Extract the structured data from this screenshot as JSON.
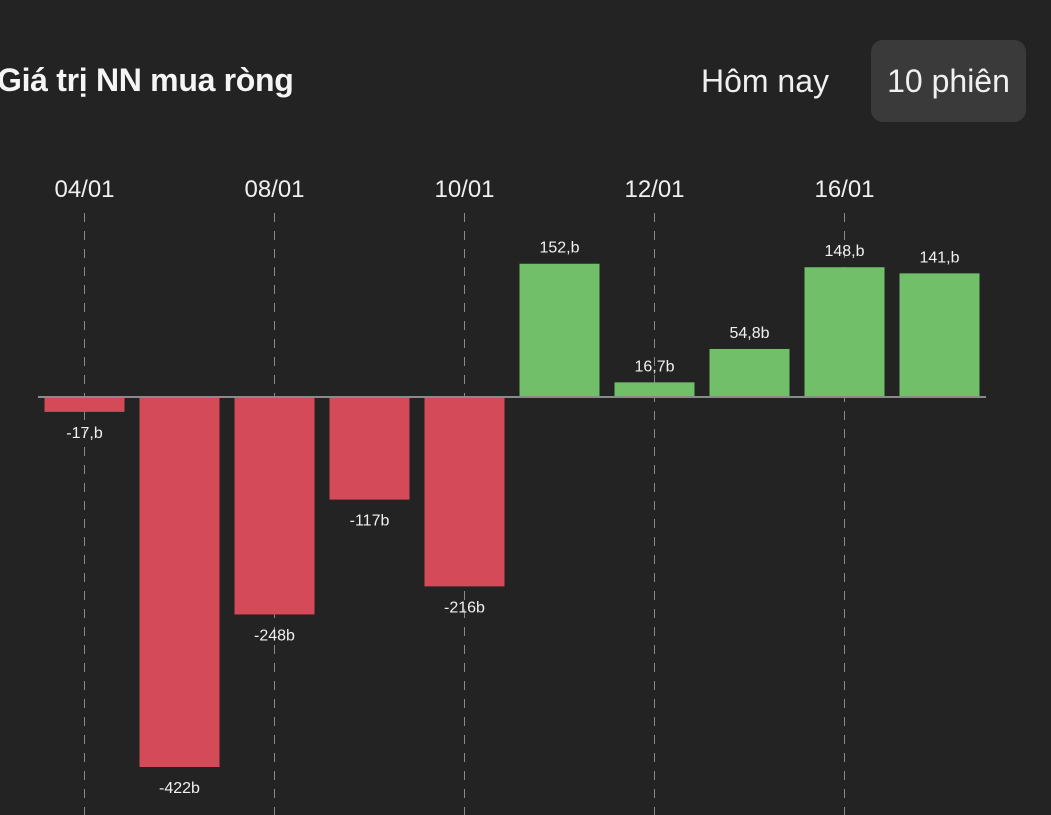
{
  "header": {
    "title": "Giá trị NN mua ròng",
    "tabs": [
      {
        "label": "Hôm nay",
        "active": false
      },
      {
        "label": "10 phiên",
        "active": true
      }
    ]
  },
  "colors": {
    "positive": "#72bf6a",
    "negative": "#d44a58",
    "baseline": "#8a8a8a",
    "gridline": "#8a8a8a",
    "background": "#232323"
  },
  "chart_data": {
    "type": "bar",
    "categories": [
      "04/01",
      "",
      "08/01",
      "",
      "10/01",
      "",
      "12/01",
      "",
      "16/01",
      ""
    ],
    "x_tick_labels": [
      {
        "index": 0,
        "label": "04/01"
      },
      {
        "index": 2,
        "label": "08/01"
      },
      {
        "index": 4,
        "label": "10/01"
      },
      {
        "index": 6,
        "label": "12/01"
      },
      {
        "index": 8,
        "label": "16/01"
      }
    ],
    "values": [
      -17,
      -422,
      -248,
      -117,
      -216,
      152,
      16.7,
      54.8,
      148,
      141
    ],
    "value_labels": [
      "-17,b",
      "-422b",
      "-248b",
      "-117b",
      "-216b",
      "152,b",
      "16,7b",
      "54,8b",
      "148,b",
      "141,b"
    ],
    "ylim": [
      -422,
      152
    ],
    "grid": "vertical-dashed",
    "legend": "none"
  }
}
